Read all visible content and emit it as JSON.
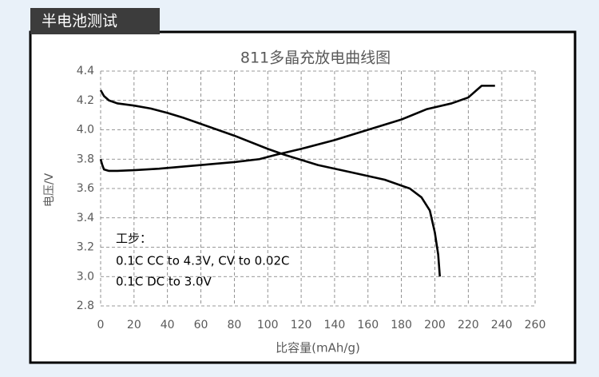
{
  "header": {
    "title": "半电池测试"
  },
  "chart_data": {
    "type": "line",
    "title": "811多晶充放电曲线图",
    "x_label": "比容量(mAh/g)",
    "y_label": "电压/V",
    "annotations": [
      "工步：",
      "0.1C CC to 4.3V, CV to 0.02C",
      "0.1C DC to 3.0V"
    ],
    "xlim": [
      0,
      260
    ],
    "xticks": [
      0,
      20,
      40,
      60,
      80,
      100,
      120,
      140,
      160,
      180,
      200,
      220,
      240,
      260
    ],
    "ylim": [
      2.8,
      4.4
    ],
    "yticks": [
      2.8,
      {
        "value": 3,
        "label": "3.0"
      },
      3.2,
      3.4,
      3.6,
      3.8,
      {
        "value": 4,
        "label": "4.0"
      },
      4.2,
      4.4
    ],
    "grid": true,
    "series": [
      {
        "color": "#000000",
        "x": [
          0,
          1,
          2,
          5,
          10,
          20,
          35,
          50,
          65,
          80,
          95,
          105,
          120,
          140,
          160,
          180,
          195,
          210,
          220,
          225,
          228,
          236
        ],
        "values": [
          3.8,
          3.76,
          3.73,
          3.72,
          3.72,
          3.725,
          3.735,
          3.75,
          3.765,
          3.78,
          3.8,
          3.83,
          3.87,
          3.93,
          4.0,
          4.07,
          4.14,
          4.18,
          4.22,
          4.27,
          4.3,
          4.3
        ]
      },
      {
        "color": "#000000",
        "x": [
          0,
          2,
          5,
          10,
          20,
          30,
          40,
          50,
          60,
          80,
          100,
          110,
          130,
          150,
          170,
          185,
          192,
          197,
          200,
          202,
          203
        ],
        "values": [
          4.27,
          4.23,
          4.2,
          4.18,
          4.165,
          4.145,
          4.115,
          4.08,
          4.04,
          3.96,
          3.87,
          3.83,
          3.76,
          3.71,
          3.66,
          3.6,
          3.54,
          3.45,
          3.3,
          3.15,
          3.0
        ]
      }
    ]
  }
}
